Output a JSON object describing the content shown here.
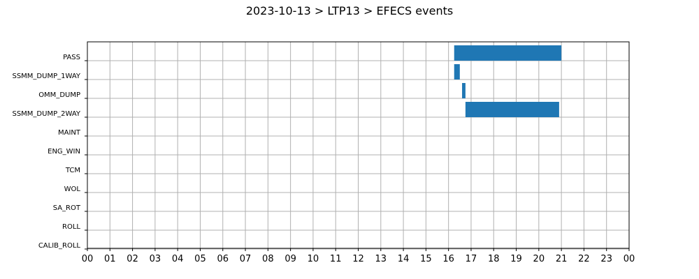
{
  "chart_data": {
    "type": "gantt",
    "title": "2023-10-13 > LTP13 > EFECS events",
    "xlabel": "",
    "ylabel": "",
    "xlim": [
      0,
      24
    ],
    "x_unit": "hours",
    "x_tick_labels": [
      "00",
      "01",
      "02",
      "03",
      "04",
      "05",
      "06",
      "07",
      "08",
      "09",
      "10",
      "11",
      "12",
      "13",
      "14",
      "15",
      "16",
      "17",
      "18",
      "19",
      "20",
      "21",
      "22",
      "23",
      "00"
    ],
    "categories": [
      "PASS",
      "SSMM_DUMP_1WAY",
      "OMM_DUMP",
      "SSMM_DUMP_2WAY",
      "MAINT",
      "ENG_WIN",
      "TCM",
      "WOL",
      "SA_ROT",
      "ROLL",
      "CALIB_ROLL"
    ],
    "grid": true,
    "bar_color": "#1f77b4",
    "events": [
      {
        "category": "PASS",
        "start": 16.25,
        "end": 21.0
      },
      {
        "category": "SSMM_DUMP_1WAY",
        "start": 16.25,
        "end": 16.5
      },
      {
        "category": "OMM_DUMP",
        "start": 16.6,
        "end": 16.75
      },
      {
        "category": "SSMM_DUMP_2WAY",
        "start": 16.75,
        "end": 20.9
      }
    ]
  }
}
